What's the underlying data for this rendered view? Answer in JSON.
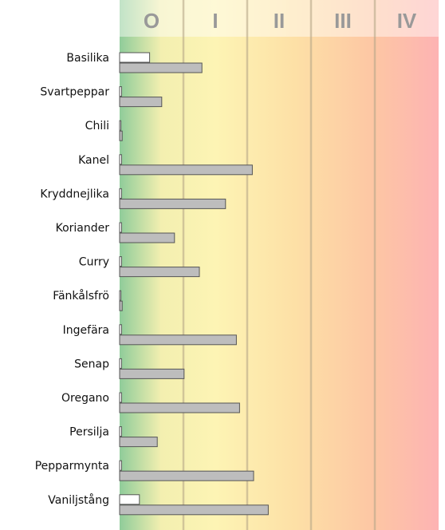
{
  "chart_data": {
    "type": "bar",
    "orientation": "horizontal",
    "zones": [
      "O",
      "I",
      "II",
      "III",
      "IV"
    ],
    "xlim": [
      0,
      5
    ],
    "categories": [
      "Basilika",
      "Svartpeppar",
      "Chili",
      "Kanel",
      "Kryddnejlika",
      "Koriander",
      "Curry",
      "Fänkålsfrö",
      "Ingefära",
      "Senap",
      "Oregano",
      "Persilja",
      "Pepparmynta",
      "Vaniljstång"
    ],
    "series": [
      {
        "color": "#ffffff",
        "values": [
          0.47,
          0.03,
          0.02,
          0.03,
          0.03,
          0.03,
          0.03,
          0.02,
          0.03,
          0.03,
          0.03,
          0.03,
          0.03,
          0.31
        ]
      },
      {
        "color": "#bdbdbd",
        "values": [
          1.29,
          0.66,
          0.04,
          2.08,
          1.66,
          0.86,
          1.25,
          0.04,
          1.83,
          1.01,
          1.88,
          0.59,
          2.1,
          2.33
        ]
      }
    ]
  }
}
